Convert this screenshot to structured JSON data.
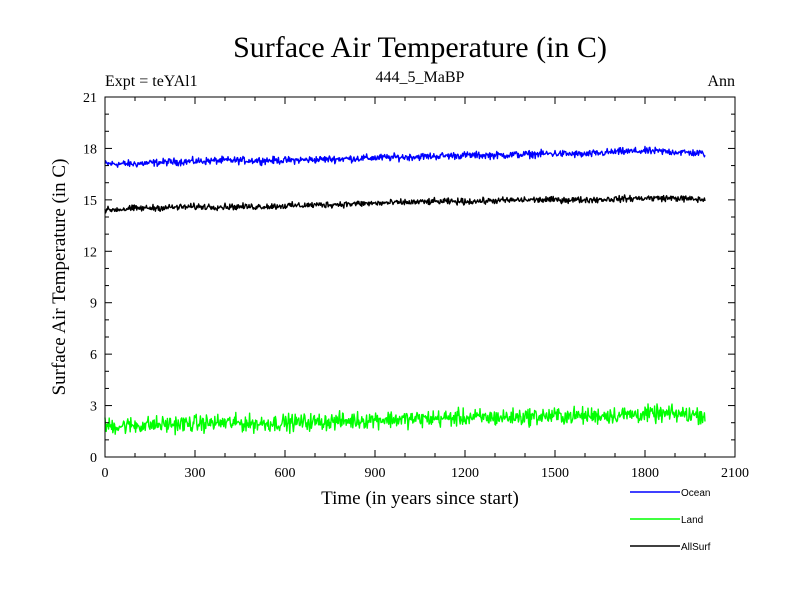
{
  "chart_data": {
    "type": "line",
    "title": "Surface Air Temperature (in C)",
    "subtitle": "444_5_MaBP",
    "left_label": "Expt = teYAl1",
    "right_label": "Ann",
    "xlabel": "Time (in years since start)",
    "ylabel": "Surface Air Temperature (in C)",
    "xlim": [
      0,
      2100
    ],
    "ylim": [
      0,
      21
    ],
    "xticks": [
      0,
      300,
      600,
      900,
      1200,
      1500,
      1800,
      2100
    ],
    "yticks": [
      0,
      3,
      6,
      9,
      12,
      15,
      18,
      21
    ],
    "x_range": [
      0,
      2000
    ],
    "legend_position": "bottom-right",
    "series": [
      {
        "name": "Ocean",
        "color": "#0000ff",
        "x": [
          0,
          100,
          200,
          300,
          400,
          500,
          600,
          700,
          800,
          900,
          1000,
          1100,
          1200,
          1300,
          1400,
          1500,
          1600,
          1700,
          1800,
          1900,
          2000
        ],
        "values": [
          17.1,
          17.1,
          17.2,
          17.25,
          17.3,
          17.3,
          17.3,
          17.35,
          17.4,
          17.45,
          17.5,
          17.55,
          17.6,
          17.6,
          17.65,
          17.7,
          17.65,
          17.8,
          17.85,
          17.8,
          17.7
        ],
        "noise": 0.15
      },
      {
        "name": "Land",
        "color": "#00ff00",
        "x": [
          0,
          100,
          200,
          300,
          400,
          500,
          600,
          700,
          800,
          900,
          1000,
          1100,
          1200,
          1300,
          1400,
          1500,
          1600,
          1700,
          1800,
          1900,
          2000
        ],
        "values": [
          1.8,
          1.85,
          1.9,
          1.95,
          2.0,
          1.95,
          2.0,
          2.05,
          2.1,
          2.2,
          2.2,
          2.25,
          2.3,
          2.3,
          2.35,
          2.4,
          2.4,
          2.45,
          2.5,
          2.5,
          2.45
        ],
        "noise": 0.35
      },
      {
        "name": "AllSurf",
        "color": "#000000",
        "x": [
          0,
          100,
          200,
          300,
          400,
          500,
          600,
          700,
          800,
          900,
          1000,
          1100,
          1200,
          1300,
          1400,
          1500,
          1600,
          1700,
          1800,
          1900,
          2000
        ],
        "values": [
          14.4,
          14.5,
          14.55,
          14.6,
          14.6,
          14.6,
          14.65,
          14.7,
          14.75,
          14.8,
          14.85,
          14.9,
          14.9,
          14.95,
          15.0,
          15.0,
          15.0,
          15.05,
          15.1,
          15.1,
          15.0
        ],
        "noise": 0.13
      }
    ]
  }
}
